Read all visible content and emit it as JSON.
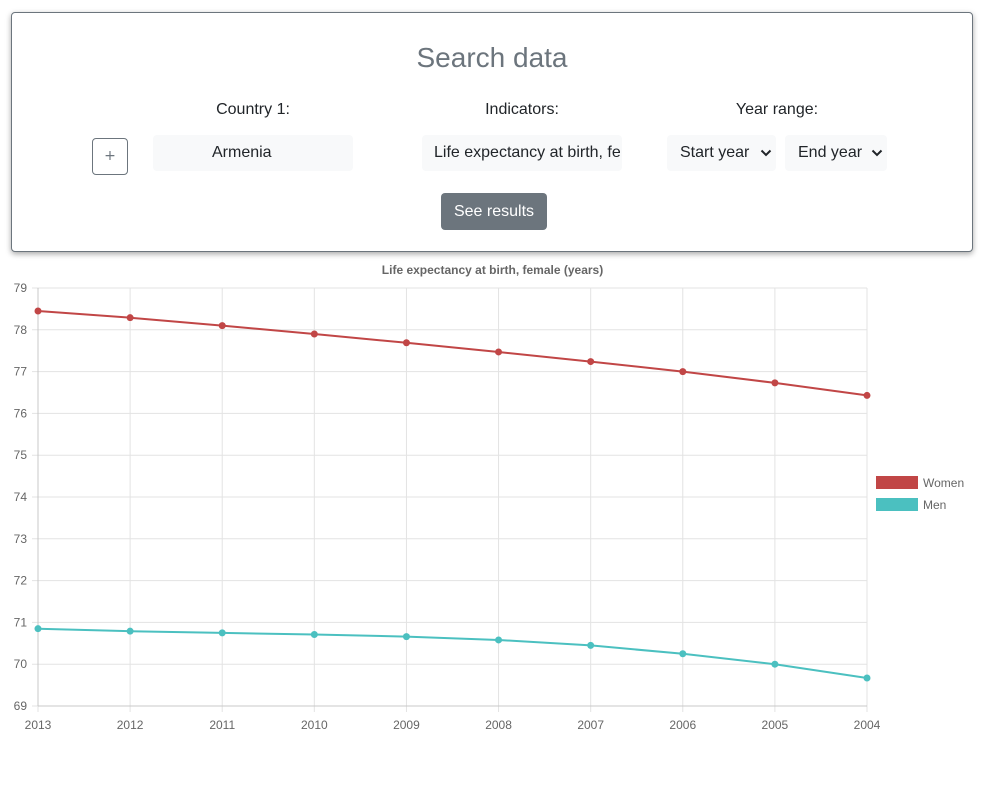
{
  "search": {
    "title": "Search data",
    "add_button_label": "+",
    "country_label": "Country 1:",
    "country_value": "Armenia",
    "indicators_label": "Indicators:",
    "indicator_value": "Life expectancy at birth, female (years)",
    "year_range_label": "Year range:",
    "start_year_label": "Start year",
    "end_year_label": "End year",
    "see_results_label": "See results"
  },
  "chart_data": {
    "type": "line",
    "title": "Life expectancy at birth, female (years)",
    "xlabel": "",
    "ylabel": "",
    "categories": [
      "2013",
      "2012",
      "2011",
      "2010",
      "2009",
      "2008",
      "2007",
      "2006",
      "2005",
      "2004"
    ],
    "ylim": [
      69,
      79
    ],
    "yticks": [
      69,
      70,
      71,
      72,
      73,
      74,
      75,
      76,
      77,
      78,
      79
    ],
    "grid": true,
    "legend_position": "right",
    "series": [
      {
        "name": "Women",
        "color": "#c14646",
        "values": [
          78.45,
          78.29,
          78.1,
          77.9,
          77.69,
          77.47,
          77.24,
          77.0,
          76.73,
          76.43
        ]
      },
      {
        "name": "Men",
        "color": "#4bc0c0",
        "values": [
          70.85,
          70.79,
          70.75,
          70.71,
          70.66,
          70.58,
          70.45,
          70.25,
          70.0,
          69.67
        ]
      }
    ]
  }
}
